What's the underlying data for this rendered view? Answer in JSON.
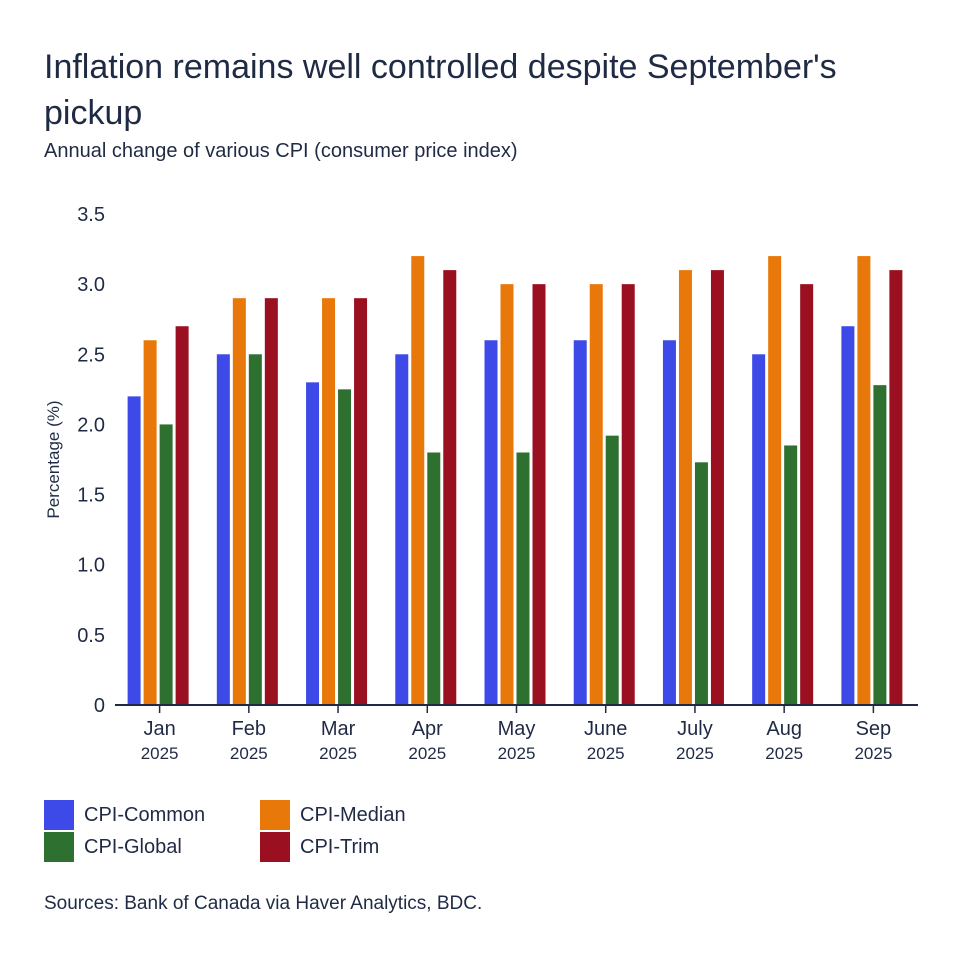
{
  "chart_data": {
    "type": "bar",
    "title": "Inflation remains well controlled despite September's pickup",
    "subtitle": "Annual change of various CPI (consumer price index)",
    "ylabel": "Percentage (%)",
    "xlabel": "",
    "ylim": [
      0,
      3.5
    ],
    "yticks": [
      "0",
      "0.5",
      "1.0",
      "1.5",
      "2.0",
      "2.5",
      "3.0",
      "3.5"
    ],
    "categories": [
      "Jan",
      "Feb",
      "Mar",
      "Apr",
      "May",
      "June",
      "July",
      "Aug",
      "Sep"
    ],
    "category_year": "2025",
    "grid": false,
    "legend_position": "bottom-left",
    "series": [
      {
        "name": "CPI-Common",
        "color": "#3d4ae8",
        "values": [
          2.2,
          2.5,
          2.3,
          2.5,
          2.6,
          2.6,
          2.6,
          2.5,
          2.7
        ]
      },
      {
        "name": "CPI-Median",
        "color": "#e8780a",
        "values": [
          2.6,
          2.9,
          2.9,
          3.2,
          3.0,
          3.0,
          3.1,
          3.2,
          3.2
        ]
      },
      {
        "name": "CPI-Global",
        "color": "#2e7030",
        "values": [
          2.0,
          2.5,
          2.25,
          1.8,
          1.8,
          1.92,
          1.73,
          1.85,
          2.28
        ]
      },
      {
        "name": "CPI-Trim",
        "color": "#9a1020",
        "values": [
          2.7,
          2.9,
          2.9,
          3.1,
          3.0,
          3.0,
          3.1,
          3.0,
          3.1
        ]
      }
    ]
  },
  "legend": {
    "items": [
      {
        "label": "CPI-Common",
        "color": "#3d4ae8"
      },
      {
        "label": "CPI-Median",
        "color": "#e8780a"
      },
      {
        "label": "CPI-Global",
        "color": "#2e7030"
      },
      {
        "label": "CPI-Trim",
        "color": "#9a1020"
      }
    ]
  },
  "source": "Sources: Bank of Canada via Haver Analytics, BDC."
}
